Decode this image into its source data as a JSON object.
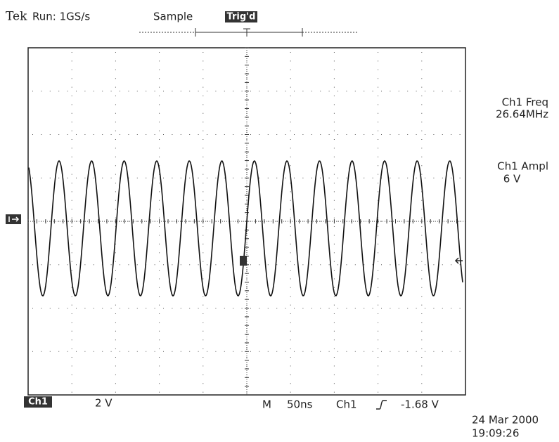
{
  "header": {
    "brand": "Tek",
    "run": "Run: 1GS/s",
    "mode": "Sample",
    "trigger": "Trig'd"
  },
  "measurements": [
    {
      "label": "Ch1 Freq",
      "value": "26.64MHz"
    },
    {
      "label": "Ch1 Ampl",
      "value": "6 V"
    }
  ],
  "footer": {
    "channel": "Ch1",
    "volts_per_div": "2 V",
    "timebase_prefix": "M",
    "timebase": "50ns",
    "trigger_source": "Ch1",
    "trigger_level": "-1.68 V"
  },
  "timestamp": {
    "date": "24 Mar 2000",
    "time": "19:09:26"
  }
}
